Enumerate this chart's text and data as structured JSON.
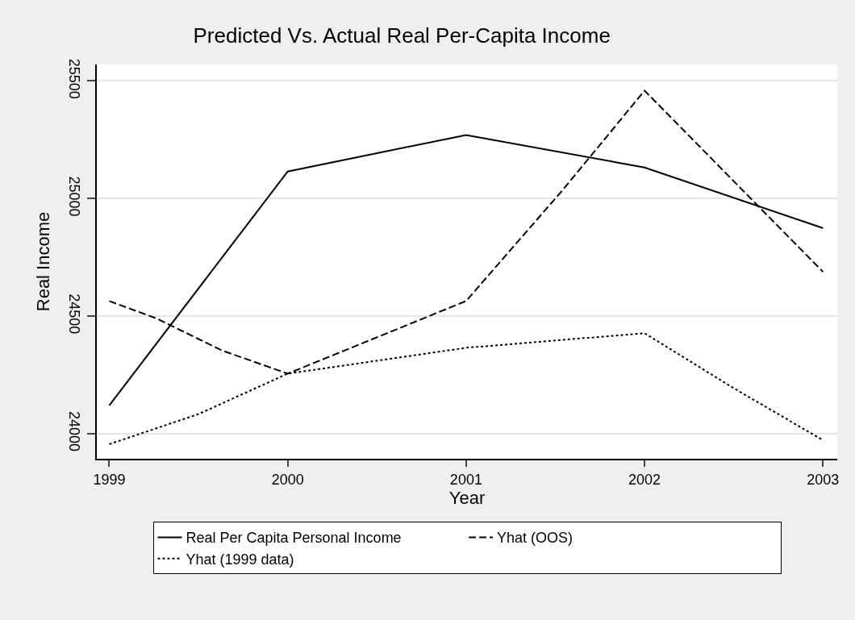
{
  "chart_data": {
    "type": "line",
    "title": "Predicted Vs. Actual Real Per-Capita Income",
    "xlabel": "Year",
    "ylabel": "Real Income",
    "xlim": [
      1998.93,
      2003.08
    ],
    "xticks": [
      1999,
      2000,
      2001,
      2002,
      2003
    ],
    "ylim": [
      23893,
      25570
    ],
    "yticks": [
      24000,
      24500,
      25000,
      25500
    ],
    "grid": "y",
    "legend": "bottom",
    "marker": "none",
    "series": [
      {
        "name": "Real Per Capita Personal Income",
        "color": "#000000",
        "line_style": "solid",
        "x": [
          1999,
          2000,
          2001,
          2002,
          2003
        ],
        "values": [
          24120,
          25115,
          25270,
          25132,
          24874
        ]
      },
      {
        "name": "Yhat (OOS)",
        "color": "#000000",
        "line_style": "dashed",
        "x": [
          1999,
          1999.27,
          1999.63,
          2000,
          2001,
          2001.54,
          2001.88,
          2002,
          2003
        ],
        "values": [
          24564,
          24488,
          24354,
          24255,
          24564,
          25035,
          25348,
          25459,
          24688
        ]
      },
      {
        "name": "Yhat (1999 data)",
        "color": "#000000",
        "line_style": "dotted",
        "x": [
          1999,
          1999.5,
          2000,
          2001,
          2002,
          2002.5,
          2003
        ],
        "values": [
          23955,
          24083,
          24255,
          24365,
          24427,
          24193,
          23972
        ]
      }
    ]
  }
}
